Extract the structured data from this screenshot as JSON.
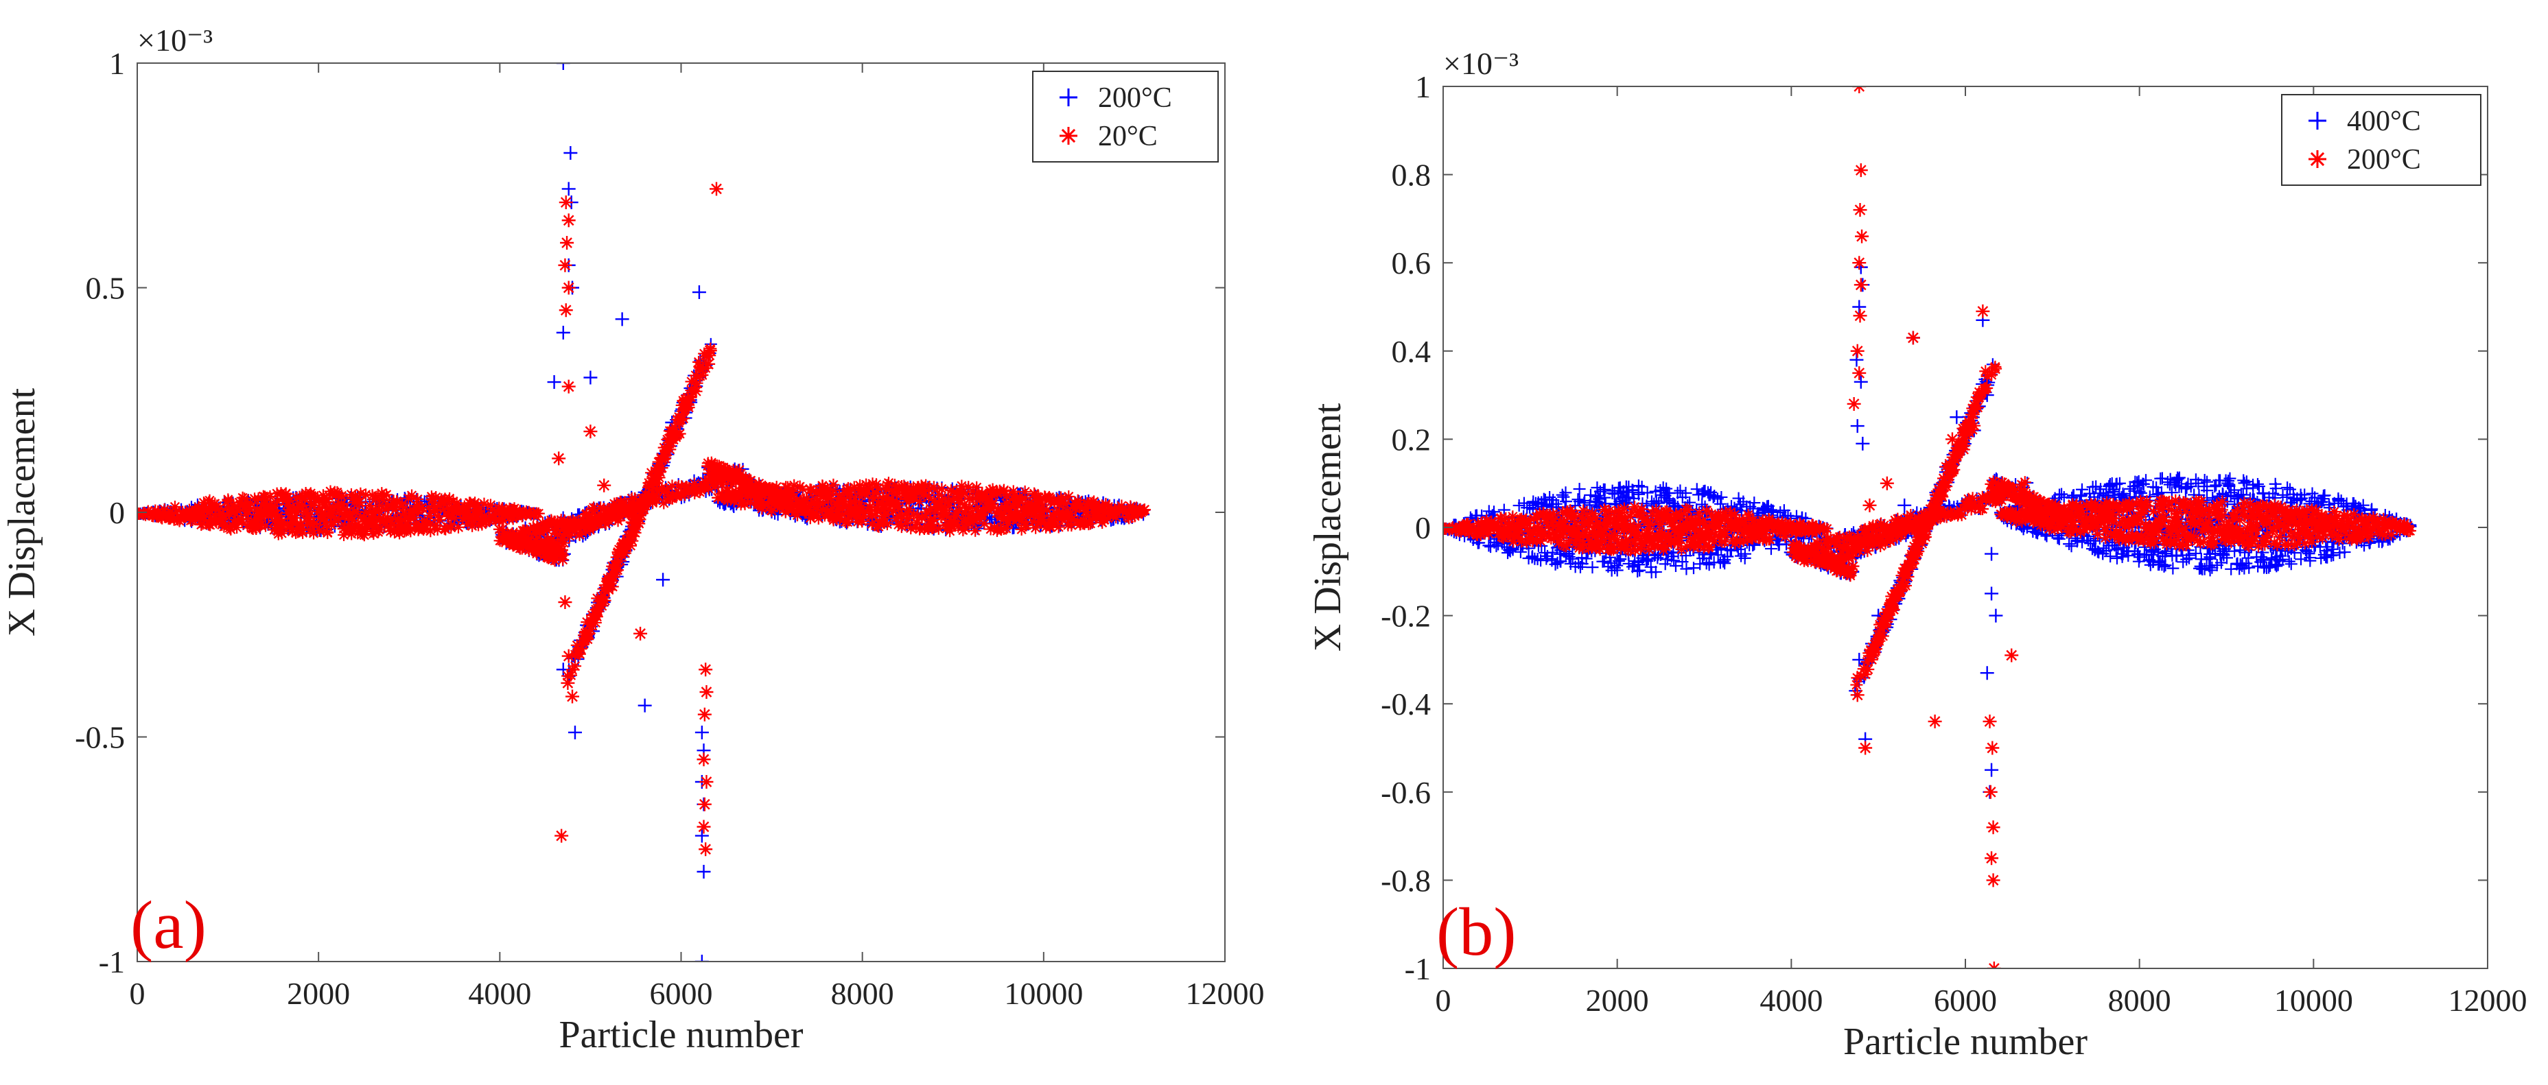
{
  "chart_data": [
    {
      "panel_label": "(a)",
      "type": "scatter",
      "xlabel": "Particle number",
      "ylabel": "X Displacement",
      "exponent": "×10⁻³",
      "xlim": [
        0,
        12000
      ],
      "ylim": [
        -1,
        1
      ],
      "xticks": [
        0,
        2000,
        4000,
        6000,
        8000,
        10000,
        12000
      ],
      "yticks": [
        -1,
        -0.5,
        0,
        0.5,
        1
      ],
      "ytick_labels": [
        "-1",
        "-0.5",
        "0",
        "0.5",
        "1"
      ],
      "legend_position": "top-right",
      "series": [
        {
          "name": "200°C",
          "marker": "+",
          "color": "#0000ff",
          "envelope": {
            "left_amp": 0.04,
            "right_amp": 0.045,
            "right_offset": 0.03
          },
          "points": [
            [
              4700,
              1.0
            ],
            [
              4780,
              0.8
            ],
            [
              4760,
              0.72
            ],
            [
              4790,
              0.69
            ],
            [
              4760,
              0.55
            ],
            [
              4800,
              0.5
            ],
            [
              4700,
              0.4
            ],
            [
              4600,
              0.29
            ],
            [
              5350,
              0.43
            ],
            [
              6200,
              0.49
            ],
            [
              6300,
              0.1
            ],
            [
              6230,
              -0.49
            ],
            [
              6250,
              -0.53
            ],
            [
              6230,
              -0.6
            ],
            [
              6250,
              -0.65
            ],
            [
              6230,
              -0.72
            ],
            [
              6250,
              -0.8
            ],
            [
              6230,
              -1.0
            ],
            [
              4830,
              -0.49
            ],
            [
              5600,
              -0.43
            ],
            [
              4900,
              -0.3
            ],
            [
              5800,
              -0.15
            ],
            [
              5000,
              0.3
            ],
            [
              5900,
              0.2
            ],
            [
              4700,
              -0.35
            ],
            [
              6100,
              0.25
            ]
          ]
        },
        {
          "name": "20°C",
          "marker": "*",
          "color": "#ff0000",
          "envelope": {
            "left_amp": 0.05,
            "right_amp": 0.05,
            "right_offset": 0.045
          },
          "points": [
            [
              4730,
              0.69
            ],
            [
              4760,
              0.65
            ],
            [
              4740,
              0.6
            ],
            [
              4720,
              0.55
            ],
            [
              4760,
              0.5
            ],
            [
              4730,
              0.45
            ],
            [
              6390,
              0.72
            ],
            [
              4680,
              -0.72
            ],
            [
              6250,
              -0.55
            ],
            [
              6280,
              -0.6
            ],
            [
              6260,
              -0.65
            ],
            [
              6250,
              -0.7
            ],
            [
              6270,
              -0.75
            ],
            [
              6260,
              -0.45
            ],
            [
              6280,
              -0.4
            ],
            [
              6270,
              -0.35
            ],
            [
              4750,
              -0.38
            ],
            [
              4760,
              -0.32
            ],
            [
              4800,
              -0.41
            ],
            [
              6320,
              0.36
            ],
            [
              6300,
              0.33
            ],
            [
              5000,
              0.18
            ],
            [
              5150,
              0.06
            ],
            [
              5550,
              -0.27
            ],
            [
              4650,
              0.12
            ],
            [
              5900,
              0.18
            ],
            [
              4760,
              0.28
            ],
            [
              4720,
              -0.2
            ]
          ]
        }
      ]
    },
    {
      "panel_label": "(b)",
      "type": "scatter",
      "xlabel": "Particle number",
      "ylabel": "X Displacement",
      "exponent": "×10⁻³",
      "xlim": [
        0,
        12000
      ],
      "ylim": [
        -1,
        1
      ],
      "xticks": [
        0,
        2000,
        4000,
        6000,
        8000,
        10000,
        12000
      ],
      "yticks": [
        -1,
        -0.8,
        -0.6,
        -0.4,
        -0.2,
        0,
        0.2,
        0.4,
        0.6,
        0.8,
        1
      ],
      "ytick_labels": [
        "-1",
        "-0.8",
        "-0.6",
        "-0.4",
        "-0.2",
        "0",
        "0.2",
        "0.4",
        "0.6",
        "0.8",
        "1"
      ],
      "legend_position": "top-right",
      "series": [
        {
          "name": "400°C",
          "marker": "+",
          "color": "#0000ff",
          "envelope": {
            "left_amp": 0.1,
            "right_amp": 0.11,
            "right_offset": 0.03
          },
          "points": [
            [
              4800,
              0.59
            ],
            [
              4820,
              0.55
            ],
            [
              4780,
              0.5
            ],
            [
              4750,
              0.38
            ],
            [
              4800,
              0.33
            ],
            [
              4760,
              0.23
            ],
            [
              4820,
              0.19
            ],
            [
              4780,
              -0.3
            ],
            [
              4850,
              -0.48
            ],
            [
              6200,
              0.47
            ],
            [
              6250,
              0.3
            ],
            [
              6300,
              -0.06
            ],
            [
              6300,
              -0.15
            ],
            [
              6250,
              -0.33
            ],
            [
              6300,
              -0.55
            ],
            [
              6280,
              -0.6
            ],
            [
              5400,
              0.43
            ],
            [
              5000,
              -0.2
            ],
            [
              5900,
              0.25
            ],
            [
              6100,
              0.22
            ],
            [
              5300,
              0.05
            ],
            [
              4700,
              -0.1
            ],
            [
              6350,
              -0.2
            ]
          ]
        },
        {
          "name": "200°C",
          "marker": "*",
          "color": "#ff0000",
          "envelope": {
            "left_amp": 0.05,
            "right_amp": 0.05,
            "right_offset": 0.03
          },
          "points": [
            [
              4780,
              1.0
            ],
            [
              4800,
              0.81
            ],
            [
              4790,
              0.72
            ],
            [
              4810,
              0.66
            ],
            [
              4780,
              0.6
            ],
            [
              4800,
              0.55
            ],
            [
              4790,
              0.48
            ],
            [
              4760,
              0.4
            ],
            [
              4780,
              0.35
            ],
            [
              4720,
              0.28
            ],
            [
              4850,
              -0.5
            ],
            [
              6200,
              0.49
            ],
            [
              6320,
              -0.8
            ],
            [
              6300,
              -0.75
            ],
            [
              6320,
              -0.68
            ],
            [
              6290,
              -0.6
            ],
            [
              6310,
              -0.5
            ],
            [
              6280,
              -0.44
            ],
            [
              6330,
              -1.0
            ],
            [
              5400,
              0.43
            ],
            [
              5650,
              -0.44
            ],
            [
              6530,
              -0.29
            ],
            [
              4760,
              -0.38
            ],
            [
              6340,
              0.36
            ],
            [
              5100,
              0.1
            ],
            [
              5850,
              0.2
            ],
            [
              4900,
              0.05
            ]
          ]
        }
      ]
    }
  ]
}
